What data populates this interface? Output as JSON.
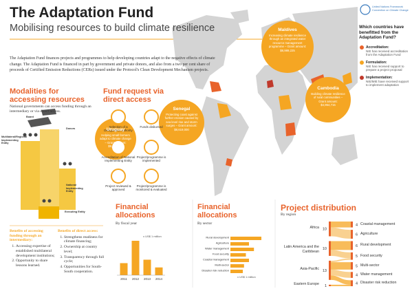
{
  "header": {
    "title": "The Adaptation Fund",
    "subtitle": "Mobilising resources to build climate resilience",
    "logo_text": "United Nations Framework Convention on Climate Change"
  },
  "intro": "The Adaptation Fund finances projects and programmes to help developing countries adapt to the negative effects of climate change. The Adaptation Fund is financed in part by government and private donors, and also from a two per cent share of proceeds of Certified Emission Reductions (CERs) issued under the Protocol's Clean Development Mechanism projects.",
  "modalities": {
    "title": "Modalities for accessing resources",
    "text": "National governments can access funding through an intermediary or via direct access.",
    "levels": [
      "Board",
      "Donors",
      "Multilateral/Regional Implementing Entity",
      "National Implementing Entity",
      "Executing Entity"
    ]
  },
  "fund_request": {
    "title": "Fund request via direct access",
    "steps": [
      "Selection of a Designated Authority",
      "Funds disbursed",
      "Accreditation of National Implementing Entity",
      "Project/programme is implemented",
      "Project reviewed & approved",
      "Project/programme is monitored & evaluated"
    ]
  },
  "benefits": [
    {
      "title": "Benefits of accessing funding through an intermediary:",
      "items": [
        "Accessing expertise of established multilateral development institutions;",
        "Opportunity to share lessons learned."
      ]
    },
    {
      "title": "Benefits of direct access:",
      "items": [
        "Strengthens readiness for climate financing;",
        "Ownership at country level;",
        "Transparency through full cycle;",
        "Opportunities for South-South cooperation."
      ]
    }
  ],
  "map": {
    "callouts": [
      {
        "country": "Uruguay",
        "text": "Helping small farmers adapt to climate change – Grant amount: $9,967,619"
      },
      {
        "country": "Senegal",
        "text": "Protecting coast against further erosion caused by sea level rise and storm surges – Grant amount: $8,619,000"
      },
      {
        "country": "Maldives",
        "text": "Increasing climate resilience through an integrated water resource management programme – Grant amount: $8,989,225"
      },
      {
        "country": "Cambodia",
        "text": "Building climate resilience of rural communities – Grant amount: $4,954,715"
      }
    ]
  },
  "sidebar": {
    "title": "Which countries have benefitted from the Adaptation Fund?",
    "legend": [
      {
        "label": "Accreditation:",
        "text": "NIE has received accreditation from the Adaptation Fund",
        "color": "#e8632b"
      },
      {
        "label": "Formulation:",
        "text": "NIE has received support to prepare a project proposal",
        "color": "#f5a623"
      },
      {
        "label": "Implementation:",
        "text": "NIE/MIE have received support to implement adaptation",
        "color": "#c0392b"
      }
    ]
  },
  "charts": [
    {
      "type": "bar",
      "title": "Financial allocations",
      "subtitle": "By fiscal year",
      "unit_label": "x US$ 1 million",
      "categories": [
        "2011",
        "2012",
        "2013",
        "2014"
      ],
      "values": [
        14,
        40,
        18,
        9
      ],
      "color": "#f5a623"
    },
    {
      "type": "hbar",
      "title": "Financial allocations",
      "subtitle": "By sector",
      "unit_label": "x US$ 1 million",
      "categories": [
        "Rural development",
        "Agriculture",
        "Water management",
        "Food security",
        "Coastal management",
        "Multi-sector",
        "Disaster risk reduction"
      ],
      "values": [
        50,
        30,
        38,
        25,
        30,
        22,
        20
      ],
      "color": "#f5a623"
    },
    {
      "type": "sankey",
      "title": "Project distribution",
      "subtitle": "By region",
      "sources": [
        {
          "label": "Africa",
          "value": 10
        },
        {
          "label": "Latin America and the Caribbean",
          "value": 10
        },
        {
          "label": "Asia-Pacific",
          "value": 13
        },
        {
          "label": "Eastern Europe",
          "value": 1
        }
      ],
      "targets": [
        {
          "label": "Coastal management",
          "value": 4
        },
        {
          "label": "Agriculture",
          "value": 6
        },
        {
          "label": "Rural development",
          "value": 6
        },
        {
          "label": "Food security",
          "value": 5
        },
        {
          "label": "Multi-sector",
          "value": 5
        },
        {
          "label": "Water management",
          "value": 4
        },
        {
          "label": "Disaster risk reduction",
          "value": 4
        }
      ],
      "color": "#f5a623"
    }
  ]
}
